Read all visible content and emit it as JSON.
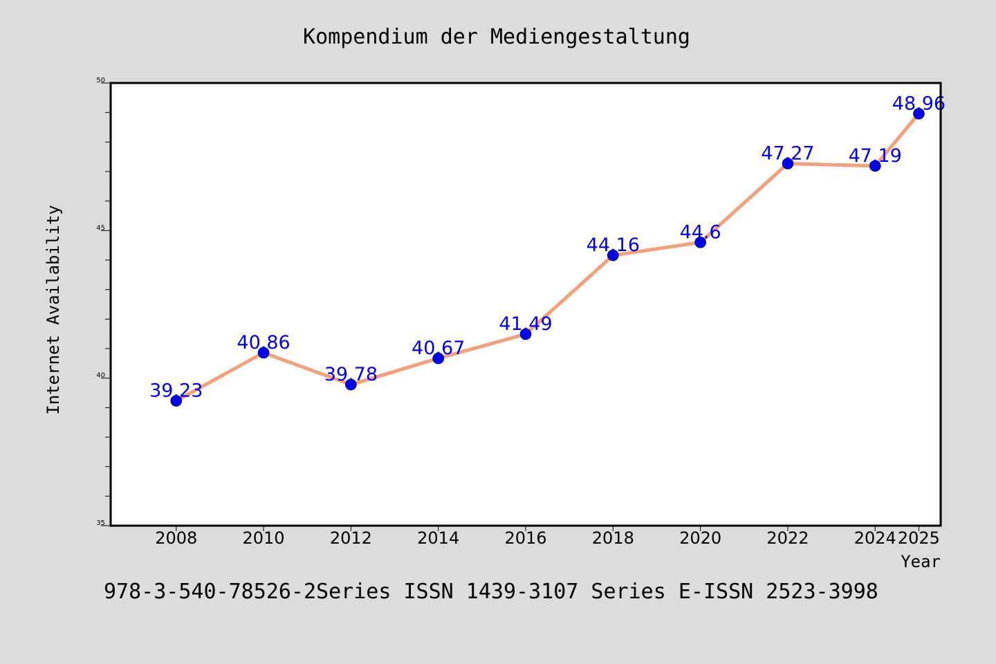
{
  "chart_data": {
    "type": "line",
    "title": "Kompendium der Mediengestaltung",
    "xlabel": "Year",
    "ylabel": "Internet Availability",
    "x": [
      "2008",
      "2010",
      "2012",
      "2014",
      "2016",
      "2018",
      "2020",
      "2022",
      "2024",
      "2025"
    ],
    "series": [
      {
        "values": [
          39.23,
          40.86,
          39.78,
          40.67,
          41.49,
          44.16,
          44.6,
          47.27,
          47.19,
          48.96
        ]
      }
    ],
    "data_labels": [
      "39.23",
      "40.86",
      "39.78",
      "40.67",
      "41.49",
      "44.16",
      "44.6",
      "47.27",
      "47.19",
      "48.96"
    ],
    "ylim": [
      35,
      50
    ],
    "yticks": [
      "35",
      "40",
      "45",
      "50"
    ],
    "grid": false,
    "legend": "none",
    "line_color": "#f4a07a",
    "marker_color": "#0000ee",
    "label_color": "#0000ee"
  },
  "footer": {
    "text": "978-3-540-78526-2Series ISSN 1439-3107 Series E-ISSN 2523-3998"
  }
}
